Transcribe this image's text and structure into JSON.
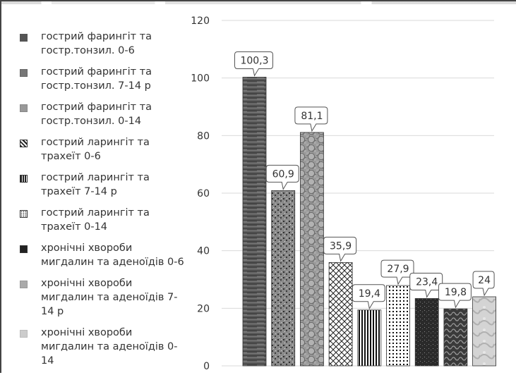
{
  "chart_data": {
    "type": "bar",
    "title": "",
    "xlabel": "",
    "ylabel": "",
    "ylim": [
      0,
      120
    ],
    "yticks": [
      0,
      20,
      40,
      60,
      80,
      100,
      120
    ],
    "grid": true,
    "legend_position": "left",
    "categories": [
      "гострий фарингіт та гостр.тонзил. 0-6",
      "гострий фарингіт та гостр.тонзил. 7-14 р",
      "гострий фарингіт та гостр.тонзил. 0-14",
      "гострий ларингіт та трахеїт 0-6",
      "гострий ларингіт та трахеїт 7-14 р",
      "гострий ларингіт та трахеїт 0-14",
      "хронічні хвороби мигдалин та аденоїдів 0-6",
      "хронічні хвороби мигдалин та аденоїдів 7-14 р",
      "хронічні хвороби мигдалин та аденоїдів 0-14"
    ],
    "values": [
      100.3,
      60.9,
      81.1,
      35.9,
      19.4,
      27.9,
      23.4,
      19.8,
      24
    ],
    "data_labels": [
      "100,3",
      "60,9",
      "81,1",
      "35,9",
      "19,4",
      "27,9",
      "23,4",
      "19,8",
      "24"
    ],
    "patterns": [
      "wood",
      "speckle",
      "scales",
      "crosshatch",
      "vstripes",
      "dots",
      "darkspeckle",
      "darkwave",
      "marble"
    ]
  },
  "legend": {
    "items": [
      "гострий фарингіт та гостр.тонзил. 0-6",
      "гострий фарингіт та гостр.тонзил. 7-14 р",
      "гострий фарингіт та гостр.тонзил. 0-14",
      "гострий ларингіт та трахеїт 0-6",
      "гострий ларингіт та трахеїт 7-14 р",
      "гострий ларингіт та трахеїт 0-14",
      "хронічні хвороби мигдалин та аденоїдів 0-6",
      "хронічні хвороби мигдалин та аденоїдів 7-14 р",
      "хронічні хвороби мигдалин та аденоїдів 0-14"
    ]
  },
  "colors": {
    "axis_text": "#333333",
    "gridline": "#d9d9d9",
    "bar_outline": "#333333"
  }
}
